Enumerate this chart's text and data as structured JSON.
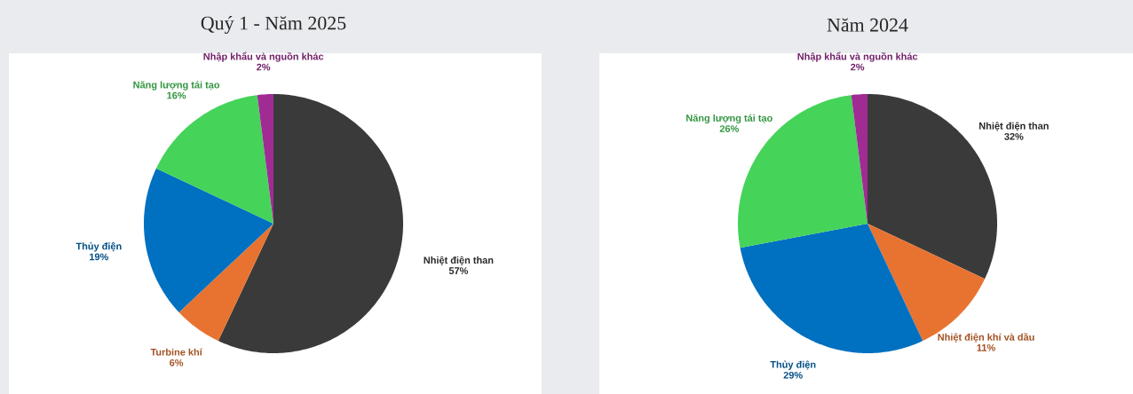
{
  "chart_data": [
    {
      "type": "pie",
      "title": "Quý 1 - Năm 2025",
      "categories": [
        "Nhiệt điện than",
        "Turbine khí",
        "Thủy điện",
        "Năng lượng tái tạo",
        "Nhập khẩu và nguồn khác"
      ],
      "values": [
        57,
        6,
        19,
        16,
        2
      ],
      "colors": [
        "#3a3a3a",
        "#e87330",
        "#0070c0",
        "#45d35a",
        "#a02b93"
      ],
      "value_labels": [
        "57%",
        "6%",
        "19%",
        "16%",
        "2%"
      ]
    },
    {
      "type": "pie",
      "title": "Năm 2024",
      "categories": [
        "Nhiệt điện than",
        "Nhiệt điện khí và dầu",
        "Thủy điện",
        "Năng lượng tái tạo",
        "Nhập khẩu và nguồn khác"
      ],
      "values": [
        32,
        11,
        29,
        26,
        2
      ],
      "colors": [
        "#3a3a3a",
        "#e87330",
        "#0070c0",
        "#45d35a",
        "#a02b93"
      ],
      "value_labels": [
        "32%",
        "11%",
        "29%",
        "26%",
        "2%"
      ]
    }
  ]
}
